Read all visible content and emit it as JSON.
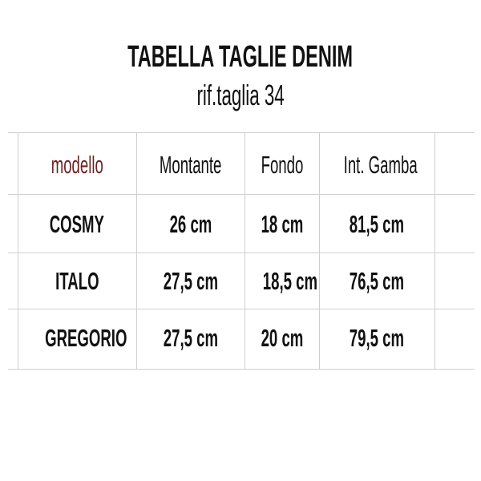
{
  "title": "TABELLA TAGLIE DENIM",
  "subtitle": "rif.taglia 34",
  "colors": {
    "header_model": "#6b2424",
    "text": "#111111",
    "grid": "#cfcfcf"
  },
  "table": {
    "headers": [
      "modello",
      "Montante",
      "Fondo",
      "Int. Gamba"
    ],
    "rows": [
      [
        "COSMY",
        "26 cm",
        "18 cm",
        "81,5 cm"
      ],
      [
        "ITALO",
        "27,5 cm",
        "18,5 cm",
        "76,5 cm"
      ],
      [
        "GREGORIO",
        "27,5 cm",
        "20 cm",
        "79,5 cm"
      ]
    ]
  }
}
